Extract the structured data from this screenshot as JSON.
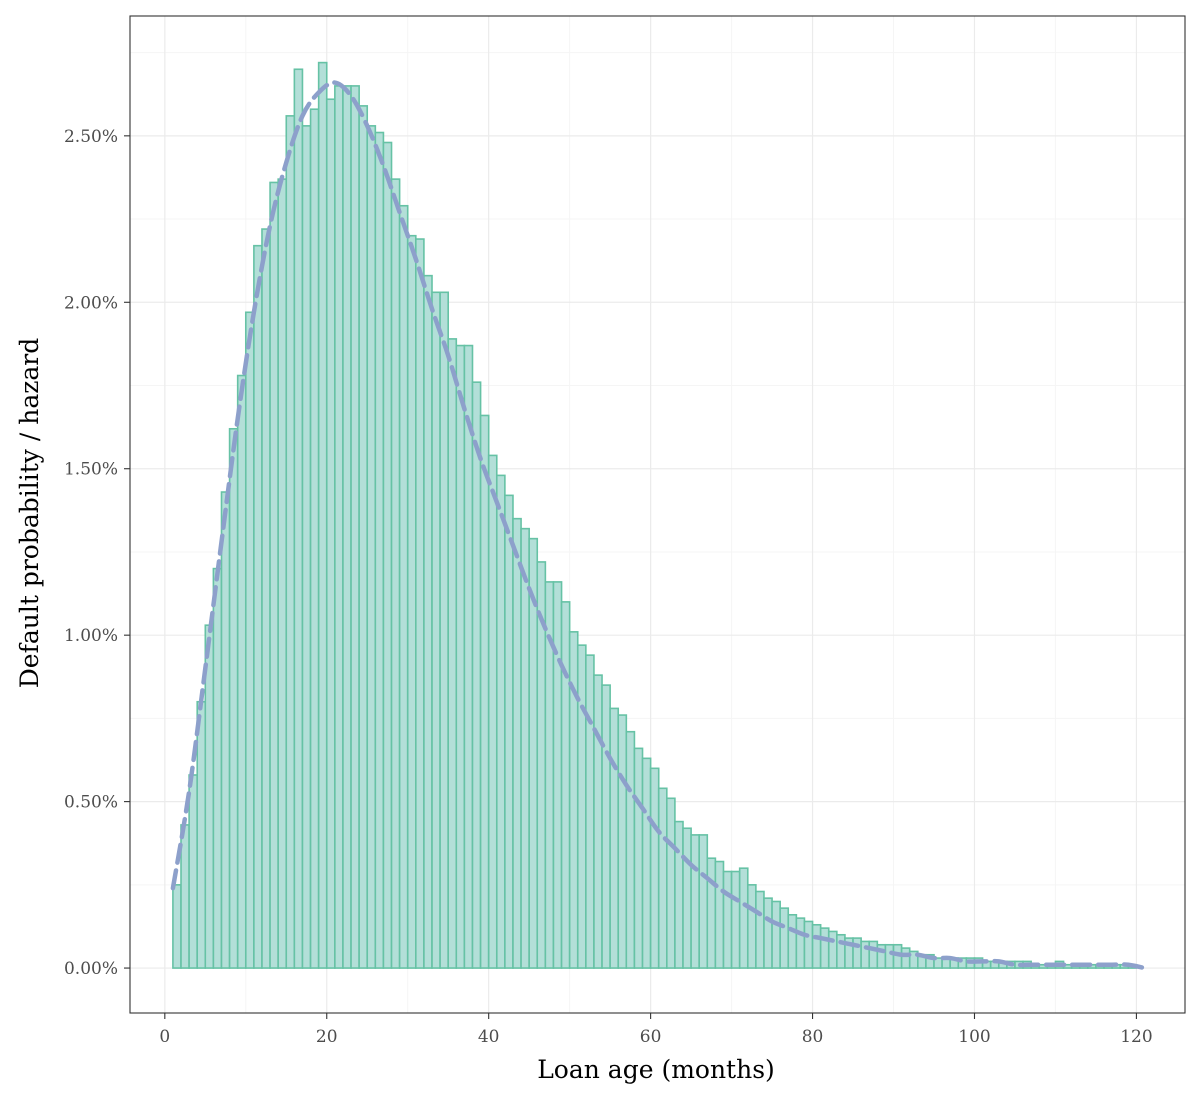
{
  "chart_data": {
    "type": "bar",
    "title": "",
    "xlabel": "Loan age (months)",
    "ylabel": "Default probability / hazard",
    "xlim": [
      -4.3,
      126.0
    ],
    "ylim": [
      -0.00135,
      0.0286
    ],
    "x_ticks": [
      0,
      20,
      40,
      60,
      80,
      100,
      120
    ],
    "x_tick_labels": [
      "0",
      "20",
      "40",
      "60",
      "80",
      "100",
      "120"
    ],
    "y_ticks": [
      0,
      0.005,
      0.01,
      0.015,
      0.02,
      0.025
    ],
    "y_tick_labels": [
      "0.00%",
      "0.50%",
      "1.00%",
      "1.50%",
      "2.00%",
      "2.50%"
    ],
    "grid": true,
    "legend": "none",
    "bin_width": 1,
    "x": [
      1.5,
      2.5,
      3.5,
      4.5,
      5.5,
      6.5,
      7.5,
      8.5,
      9.5,
      10.5,
      11.5,
      12.5,
      13.5,
      14.5,
      15.5,
      16.5,
      17.5,
      18.5,
      19.5,
      20.5,
      21.5,
      22.5,
      23.5,
      24.5,
      25.5,
      26.5,
      27.5,
      28.5,
      29.5,
      30.5,
      31.5,
      32.5,
      33.5,
      34.5,
      35.5,
      36.5,
      37.5,
      38.5,
      39.5,
      40.5,
      41.5,
      42.5,
      43.5,
      44.5,
      45.5,
      46.5,
      47.5,
      48.5,
      49.5,
      50.5,
      51.5,
      52.5,
      53.5,
      54.5,
      55.5,
      56.5,
      57.5,
      58.5,
      59.5,
      60.5,
      61.5,
      62.5,
      63.5,
      64.5,
      65.5,
      66.5,
      67.5,
      68.5,
      69.5,
      70.5,
      71.5,
      72.5,
      73.5,
      74.5,
      75.5,
      76.5,
      77.5,
      78.5,
      79.5,
      80.5,
      81.5,
      82.5,
      83.5,
      84.5,
      85.5,
      86.5,
      87.5,
      88.5,
      89.5,
      90.5,
      91.5,
      92.5,
      93.5,
      94.5,
      95.5,
      96.5,
      97.5,
      98.5,
      99.5,
      100.5,
      101.5,
      102.5,
      103.5,
      104.5,
      105.5,
      106.5,
      107.5,
      108.5,
      109.5,
      110.5,
      111.5,
      112.5,
      113.5,
      114.5,
      115.5,
      116.5,
      117.5,
      118.5,
      119.5
    ],
    "series": [
      {
        "type": "bar",
        "values": [
          0.0025,
          0.0043,
          0.0058,
          0.008,
          0.0103,
          0.012,
          0.0143,
          0.0162,
          0.0178,
          0.0197,
          0.0217,
          0.0222,
          0.0236,
          0.0237,
          0.0256,
          0.027,
          0.0253,
          0.0258,
          0.0272,
          0.0261,
          0.0265,
          0.0265,
          0.0265,
          0.0259,
          0.0253,
          0.0251,
          0.0248,
          0.0237,
          0.0229,
          0.022,
          0.0219,
          0.0208,
          0.0203,
          0.0203,
          0.0189,
          0.0187,
          0.0187,
          0.0176,
          0.0166,
          0.0154,
          0.0148,
          0.0142,
          0.0135,
          0.0132,
          0.0129,
          0.0122,
          0.0116,
          0.0116,
          0.011,
          0.0101,
          0.0097,
          0.0094,
          0.0088,
          0.0085,
          0.0078,
          0.0076,
          0.0071,
          0.0066,
          0.0063,
          0.006,
          0.0054,
          0.0051,
          0.0044,
          0.0042,
          0.004,
          0.004,
          0.0033,
          0.0032,
          0.0029,
          0.0029,
          0.003,
          0.0025,
          0.0023,
          0.0021,
          0.002,
          0.0018,
          0.0016,
          0.0015,
          0.0014,
          0.0013,
          0.0012,
          0.0011,
          0.001,
          0.0009,
          0.0009,
          0.0008,
          0.0008,
          0.0007,
          0.0007,
          0.0007,
          0.0006,
          0.0005,
          0.0004,
          0.0004,
          0.0003,
          0.0003,
          0.0003,
          0.0003,
          0.0003,
          0.0003,
          0.0002,
          0.0002,
          0.0002,
          0.0002,
          0.0002,
          0.0002,
          0.0001,
          0.0001,
          0.0001,
          0.0002,
          0.0001,
          0.0001,
          0.0001,
          0.0001,
          0.0001,
          0.0001,
          0.0001,
          0.0001,
          0.0001
        ],
        "fill": "#b3dfd8",
        "stroke": "#66c2a5"
      },
      {
        "type": "line",
        "style": "dashed",
        "x": [
          1,
          3,
          5,
          7,
          9,
          11,
          13,
          15,
          17,
          19,
          21,
          23,
          25,
          27,
          29,
          31,
          33,
          35,
          37,
          39,
          41,
          43,
          45,
          47,
          49,
          51,
          53,
          55,
          57,
          59,
          61,
          63,
          65,
          67,
          69,
          71,
          73,
          75,
          77,
          79,
          81,
          83,
          85,
          87,
          89,
          91,
          93,
          95,
          97,
          99,
          101,
          103,
          105,
          107,
          109,
          111,
          113,
          115,
          117,
          119,
          121
        ],
        "values": [
          0.0024,
          0.0053,
          0.009,
          0.0128,
          0.0165,
          0.0197,
          0.0223,
          0.0242,
          0.0256,
          0.0263,
          0.0266,
          0.0262,
          0.0253,
          0.0241,
          0.0227,
          0.0213,
          0.0198,
          0.0184,
          0.0168,
          0.0153,
          0.014,
          0.0127,
          0.0114,
          0.0102,
          0.0091,
          0.0081,
          0.0072,
          0.0063,
          0.0055,
          0.0048,
          0.0041,
          0.0036,
          0.0031,
          0.0027,
          0.0023,
          0.002,
          0.0017,
          0.0014,
          0.0012,
          0.001,
          0.0009,
          0.0008,
          0.0007,
          0.0006,
          0.0005,
          0.0004,
          0.0004,
          0.0003,
          0.0003,
          0.0002,
          0.0002,
          0.0002,
          0.0001,
          0.0001,
          0.0001,
          0.0001,
          0.0001,
          0.0001,
          0.0001,
          0.0001,
          0.0
        ],
        "stroke": "#8da0cb"
      }
    ]
  },
  "colors": {
    "panel_border": "#333333",
    "grid_major": "#ebebeb",
    "grid_minor": "#f5f5f5"
  }
}
